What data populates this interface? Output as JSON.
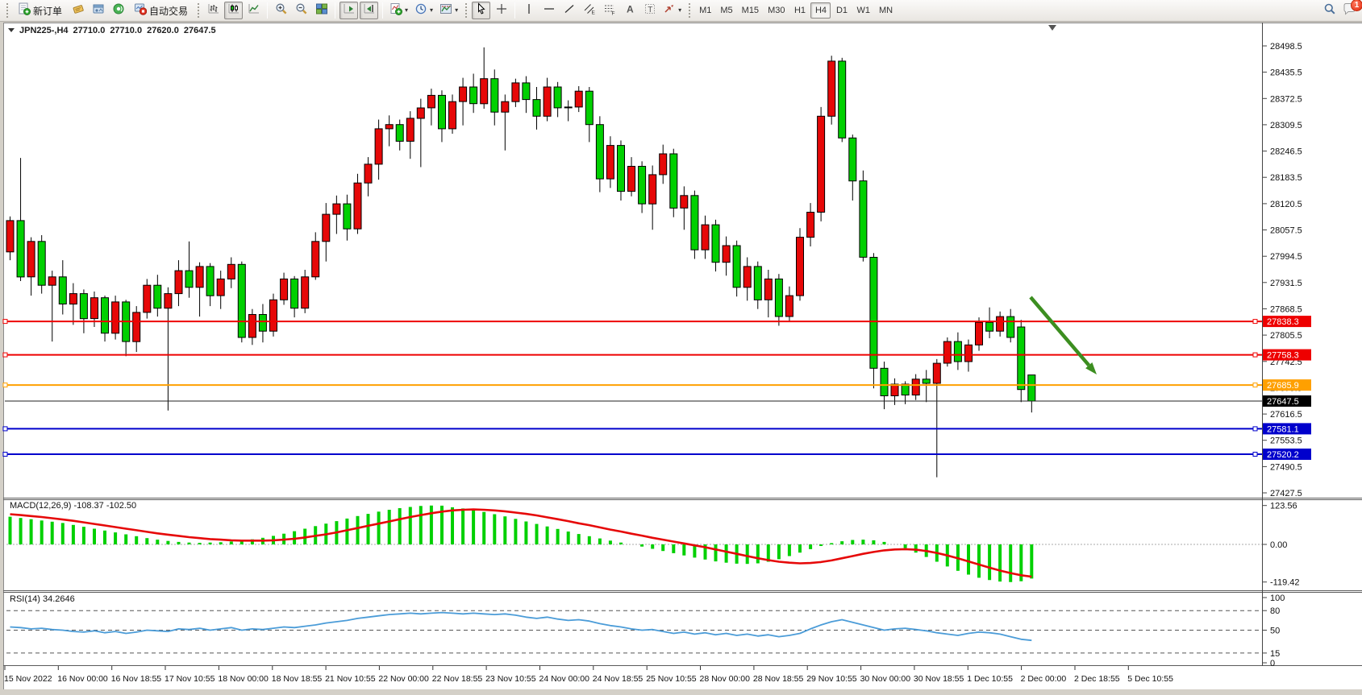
{
  "toolbar": {
    "new_order": "新订单",
    "autotrading": "自动交易",
    "timeframes": [
      "M1",
      "M5",
      "M15",
      "M30",
      "H1",
      "H4",
      "D1",
      "W1",
      "MN"
    ],
    "active_timeframe": "H4",
    "notification_badge": "1"
  },
  "chart_header": {
    "symbol": "JPN225-,H4",
    "open": "27710.0",
    "high": "27710.0",
    "low": "27620.0",
    "close": "27647.5"
  },
  "chart_data": {
    "price": {
      "type": "candlestick",
      "symbol": "JPN225-",
      "timeframe": "H4",
      "ylim": [
        27427.5,
        28498.5
      ],
      "y_ticks": [
        28498.5,
        28435.5,
        28372.5,
        28309.5,
        28246.5,
        28183.5,
        28120.5,
        28057.5,
        27994.5,
        27931.5,
        27868.5,
        27805.5,
        27742.5,
        27679.5,
        27616.5,
        27553.5,
        27490.5,
        27427.5
      ],
      "x_labels": [
        "15 Nov 2022",
        "16 Nov 00:00",
        "16 Nov 18:55",
        "17 Nov 10:55",
        "18 Nov 00:00",
        "18 Nov 18:55",
        "21 Nov 10:55",
        "22 Nov 00:00",
        "22 Nov 18:55",
        "23 Nov 10:55",
        "24 Nov 00:00",
        "24 Nov 18:55",
        "25 Nov 10:55",
        "28 Nov 00:00",
        "28 Nov 18:55",
        "29 Nov 10:55",
        "30 Nov 00:00",
        "30 Nov 18:55",
        "1 Dec 10:55",
        "2 Dec 00:00",
        "2 Dec 18:55",
        "5 Dec 10:55"
      ],
      "up_color": "#e60808",
      "down_color": "#00d000",
      "edge_candle": [
        28050,
        28120,
        27990,
        28005
      ],
      "candles": [
        [
          28005,
          28090,
          27985,
          28080
        ],
        [
          28080,
          28230,
          27935,
          27945
        ],
        [
          27945,
          28040,
          27900,
          28030
        ],
        [
          28030,
          28045,
          27905,
          27925
        ],
        [
          27925,
          27960,
          27790,
          27945
        ],
        [
          27945,
          27985,
          27855,
          27880
        ],
        [
          27880,
          27930,
          27830,
          27905
        ],
        [
          27905,
          27915,
          27810,
          27845
        ],
        [
          27845,
          27910,
          27825,
          27895
        ],
        [
          27895,
          27900,
          27790,
          27810
        ],
        [
          27810,
          27900,
          27795,
          27885
        ],
        [
          27885,
          27890,
          27755,
          27790
        ],
        [
          27790,
          27875,
          27765,
          27860
        ],
        [
          27860,
          27940,
          27845,
          27925
        ],
        [
          27925,
          27950,
          27850,
          27870
        ],
        [
          27870,
          27920,
          27625,
          27905
        ],
        [
          27905,
          27985,
          27875,
          27960
        ],
        [
          27960,
          28030,
          27895,
          27920
        ],
        [
          27920,
          27980,
          27850,
          27970
        ],
        [
          27970,
          27978,
          27875,
          27900
        ],
        [
          27900,
          27960,
          27868,
          27940
        ],
        [
          27940,
          27992,
          27918,
          27975
        ],
        [
          27975,
          27982,
          27788,
          27800
        ],
        [
          27800,
          27868,
          27782,
          27855
        ],
        [
          27855,
          27880,
          27788,
          27815
        ],
        [
          27815,
          27905,
          27802,
          27890
        ],
        [
          27890,
          27955,
          27878,
          27940
        ],
        [
          27940,
          27947,
          27848,
          27870
        ],
        [
          27870,
          27962,
          27858,
          27945
        ],
        [
          27945,
          28052,
          27938,
          28030
        ],
        [
          28030,
          28122,
          27982,
          28095
        ],
        [
          28095,
          28140,
          28048,
          28120
        ],
        [
          28120,
          28142,
          28032,
          28060
        ],
        [
          28060,
          28192,
          28048,
          28170
        ],
        [
          28170,
          28232,
          28138,
          28215
        ],
        [
          28215,
          28322,
          28178,
          28300
        ],
        [
          28300,
          28332,
          28258,
          28310
        ],
        [
          28310,
          28322,
          28248,
          28270
        ],
        [
          28270,
          28342,
          28228,
          28325
        ],
        [
          28325,
          28372,
          28208,
          28350
        ],
        [
          28350,
          28396,
          28308,
          28380
        ],
        [
          28380,
          28392,
          28268,
          28300
        ],
        [
          28300,
          28382,
          28288,
          28365
        ],
        [
          28365,
          28422,
          28308,
          28400
        ],
        [
          28400,
          28432,
          28338,
          28360
        ],
        [
          28360,
          28495,
          28348,
          28420
        ],
        [
          28420,
          28442,
          28308,
          28340
        ],
        [
          28340,
          28382,
          28248,
          28365
        ],
        [
          28365,
          28420,
          28352,
          28410
        ],
        [
          28410,
          28426,
          28338,
          28370
        ],
        [
          28370,
          28400,
          28298,
          28330
        ],
        [
          28330,
          28422,
          28318,
          28400
        ],
        [
          28400,
          28412,
          28328,
          28350
        ],
        [
          28350,
          28368,
          28318,
          28352
        ],
        [
          28352,
          28402,
          28340,
          28390
        ],
        [
          28390,
          28400,
          28268,
          28310
        ],
        [
          28310,
          28330,
          28148,
          28180
        ],
        [
          28180,
          28282,
          28158,
          28260
        ],
        [
          28260,
          28272,
          28128,
          28150
        ],
        [
          28150,
          28232,
          28138,
          28210
        ],
        [
          28210,
          28222,
          28098,
          28120
        ],
        [
          28120,
          28212,
          28058,
          28190
        ],
        [
          28190,
          28262,
          28168,
          28240
        ],
        [
          28240,
          28252,
          28088,
          28110
        ],
        [
          28110,
          28162,
          28058,
          28140
        ],
        [
          28140,
          28152,
          27988,
          28010
        ],
        [
          28010,
          28092,
          27988,
          28070
        ],
        [
          28070,
          28082,
          27958,
          27980
        ],
        [
          27980,
          28042,
          27948,
          28020
        ],
        [
          28020,
          28032,
          27898,
          27920
        ],
        [
          27920,
          27992,
          27888,
          27970
        ],
        [
          27970,
          27982,
          27868,
          27890
        ],
        [
          27890,
          27962,
          27848,
          27940
        ],
        [
          27940,
          27952,
          27828,
          27850
        ],
        [
          27850,
          27922,
          27838,
          27900
        ],
        [
          27900,
          28062,
          27888,
          28040
        ],
        [
          28040,
          28122,
          28018,
          28100
        ],
        [
          28100,
          28352,
          28078,
          28330
        ],
        [
          28330,
          28475,
          28310,
          28462
        ],
        [
          28462,
          28470,
          28268,
          28278
        ],
        [
          28278,
          28286,
          28128,
          28175
        ],
        [
          28175,
          28200,
          27982,
          27992
        ],
        [
          27992,
          28002,
          27678,
          27726
        ],
        [
          27726,
          27742,
          27628,
          27660
        ],
        [
          27660,
          27702,
          27638,
          27688
        ],
        [
          27688,
          27695,
          27640,
          27662
        ],
        [
          27662,
          27712,
          27650,
          27700
        ],
        [
          27700,
          27722,
          27645,
          27690
        ],
        [
          27690,
          27748,
          27465,
          27738
        ],
        [
          27738,
          27800,
          27730,
          27790
        ],
        [
          27790,
          27812,
          27722,
          27742
        ],
        [
          27742,
          27795,
          27718,
          27782
        ],
        [
          27782,
          27848,
          27768,
          27836
        ],
        [
          27836,
          27872,
          27798,
          27815
        ],
        [
          27815,
          27862,
          27802,
          27850
        ],
        [
          27850,
          27868,
          27788,
          27800
        ],
        [
          27825,
          27842,
          27645,
          27675
        ],
        [
          27710,
          27710,
          27620,
          27647.5
        ]
      ],
      "hlines": [
        {
          "price": 27838.3,
          "color": "#ee0000",
          "label": "27838.3"
        },
        {
          "price": 27758.3,
          "color": "#ee0000",
          "label": "27758.3"
        },
        {
          "price": 27685.9,
          "color": "#ffa000",
          "label": "27685.9"
        },
        {
          "price": 27581.1,
          "color": "#0000cc",
          "label": "27581.1"
        },
        {
          "price": 27520.2,
          "color": "#0000cc",
          "label": "27520.2"
        }
      ],
      "current_price": {
        "price": 27647.5,
        "label": "27647.5",
        "color": "#000000"
      },
      "arrow": {
        "from": [
          1278,
          369
        ],
        "to": [
          1360,
          465
        ],
        "color": "#3c8e20"
      }
    },
    "macd": {
      "type": "bar",
      "label": "MACD(12,26,9) -108.37 -102.50",
      "params": "12,26,9",
      "macd_current": -108.37,
      "signal_current": -102.5,
      "axis_ticks": [
        123.56,
        0,
        -119.42
      ],
      "hist_color": "#00d000",
      "signal_color": "#e60808",
      "histogram": [
        88,
        84,
        80,
        76,
        72,
        68,
        62,
        56,
        50,
        44,
        38,
        32,
        26,
        20,
        15,
        11,
        8,
        6,
        5,
        6,
        7,
        9,
        12,
        16,
        21,
        27,
        34,
        42,
        50,
        58,
        66,
        74,
        82,
        90,
        97,
        104,
        110,
        115,
        119,
        122,
        123.6,
        123,
        118,
        114,
        109,
        103,
        96,
        89,
        81,
        73,
        65,
        57,
        49,
        41,
        33,
        26,
        19,
        12,
        6,
        0,
        -7,
        -14,
        -21,
        -28,
        -35,
        -42,
        -48,
        -54,
        -58,
        -61,
        -62,
        -60,
        -55,
        -47,
        -37,
        -26,
        -15,
        -5,
        4,
        10,
        14,
        15,
        13,
        8,
        0,
        -12,
        -26,
        -40,
        -55,
        -70,
        -84,
        -96,
        -106,
        -113,
        -118,
        -119.4,
        -117,
        -108.4
      ],
      "signal": [
        96,
        93,
        90,
        87,
        83,
        79,
        75,
        70,
        65,
        60,
        55,
        50,
        45,
        40,
        35,
        31,
        27,
        23,
        20,
        17,
        15,
        13,
        12,
        12,
        12,
        13,
        15,
        18,
        22,
        27,
        32,
        38,
        45,
        52,
        59,
        66,
        73,
        80,
        87,
        93,
        99,
        104,
        108,
        110,
        111,
        110,
        108,
        105,
        101,
        97,
        92,
        86,
        80,
        74,
        67,
        61,
        54,
        47,
        41,
        34,
        28,
        21,
        15,
        9,
        3,
        -3,
        -9,
        -16,
        -23,
        -30,
        -37,
        -44,
        -50,
        -55,
        -58,
        -60,
        -59,
        -56,
        -51,
        -44,
        -37,
        -30,
        -24,
        -19,
        -16,
        -15,
        -17,
        -21,
        -27,
        -35,
        -44,
        -54,
        -64,
        -74,
        -83,
        -91,
        -98,
        -102.5
      ]
    },
    "rsi": {
      "type": "line",
      "label": "RSI(14) 34.2646",
      "period": 14,
      "current": 34.2646,
      "axis_ticks": [
        100,
        80,
        50,
        15,
        0
      ],
      "levels": [
        80,
        50,
        15
      ],
      "line_color": "#4b9cd8",
      "values": [
        55,
        54,
        52,
        53,
        51,
        50,
        48,
        47,
        49,
        46,
        48,
        45,
        47,
        50,
        49,
        48,
        52,
        51,
        53,
        50,
        52,
        54,
        50,
        52,
        51,
        53,
        55,
        54,
        56,
        58,
        61,
        63,
        65,
        68,
        70,
        72,
        74,
        75,
        76,
        75,
        76,
        77,
        76,
        75,
        76,
        75,
        74,
        75,
        73,
        70,
        68,
        70,
        67,
        65,
        66,
        64,
        60,
        57,
        55,
        52,
        50,
        51,
        48,
        45,
        47,
        44,
        46,
        43,
        45,
        42,
        44,
        41,
        43,
        40,
        42,
        45,
        52,
        58,
        63,
        66,
        62,
        58,
        54,
        50,
        52,
        53,
        51,
        49,
        46,
        44,
        42,
        45,
        47,
        46,
        44,
        40,
        36,
        34.26
      ]
    }
  }
}
